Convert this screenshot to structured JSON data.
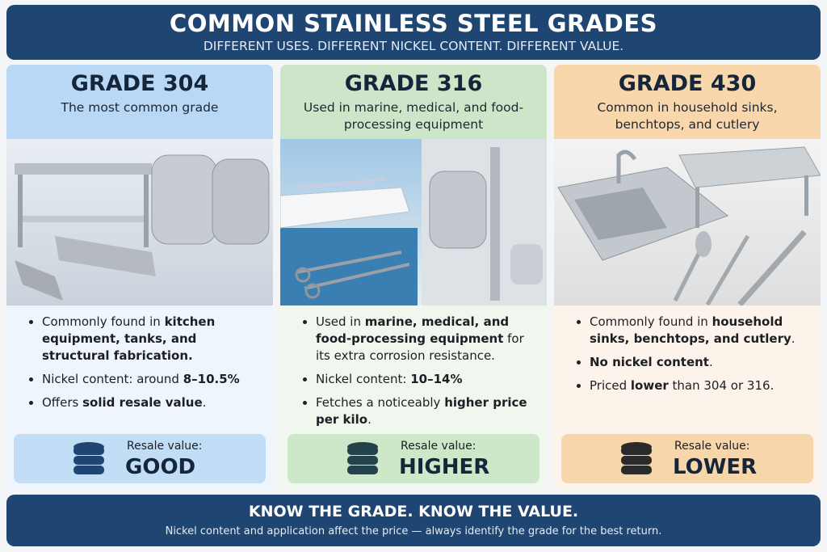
{
  "header": {
    "title": "COMMON STAINLESS STEEL GRADES",
    "subtitle": "DIFFERENT USES. DIFFERENT NICKEL CONTENT. DIFFERENT VALUE."
  },
  "grades": [
    {
      "title": "GRADE 304",
      "description": "The most common grade",
      "bullets": [
        [
          {
            "text": "Commonly found in ",
            "bold": false
          },
          {
            "text": "kitchen equipment, tanks, and structural fabrication.",
            "bold": true
          }
        ],
        [
          {
            "text": "Nickel content: around ",
            "bold": false
          },
          {
            "text": "8–10.5%",
            "bold": true
          }
        ],
        [
          {
            "text": "Offers ",
            "bold": false
          },
          {
            "text": "solid resale value",
            "bold": true
          },
          {
            "text": ".",
            "bold": false
          }
        ]
      ],
      "resale_label": "Resale value:",
      "resale_value": "GOOD"
    },
    {
      "title": "GRADE 316",
      "description": "Used in marine, medical, and food-processing equipment",
      "bullets": [
        [
          {
            "text": "Used in ",
            "bold": false
          },
          {
            "text": "marine, medical, and food-processing equipment",
            "bold": true
          },
          {
            "text": " for its extra corrosion resistance.",
            "bold": false
          }
        ],
        [
          {
            "text": "Nickel content: ",
            "bold": false
          },
          {
            "text": "10–14%",
            "bold": true
          }
        ],
        [
          {
            "text": "Fetches a noticeably ",
            "bold": false
          },
          {
            "text": "higher price per kilo",
            "bold": true
          },
          {
            "text": ".",
            "bold": false
          }
        ]
      ],
      "resale_label": "Resale value:",
      "resale_value": "HIGHER"
    },
    {
      "title": "GRADE 430",
      "description": "Common in household sinks, benchtops, and cutlery",
      "bullets": [
        [
          {
            "text": "Commonly found in ",
            "bold": false
          },
          {
            "text": "household sinks, benchtops, and cutlery",
            "bold": true
          },
          {
            "text": ".",
            "bold": false
          }
        ],
        [
          {
            "text": "No nickel content",
            "bold": true
          },
          {
            "text": ".",
            "bold": false
          }
        ],
        [
          {
            "text": "Priced ",
            "bold": false
          },
          {
            "text": "lower",
            "bold": true
          },
          {
            "text": " than 304 or 316.",
            "bold": false
          }
        ]
      ],
      "resale_label": "Resale value:",
      "resale_value": "LOWER"
    }
  ],
  "footer": {
    "title": "KNOW THE GRADE. KNOW THE VALUE.",
    "text": "Nickel content and application affect the price — always identify the grade for the best return."
  }
}
